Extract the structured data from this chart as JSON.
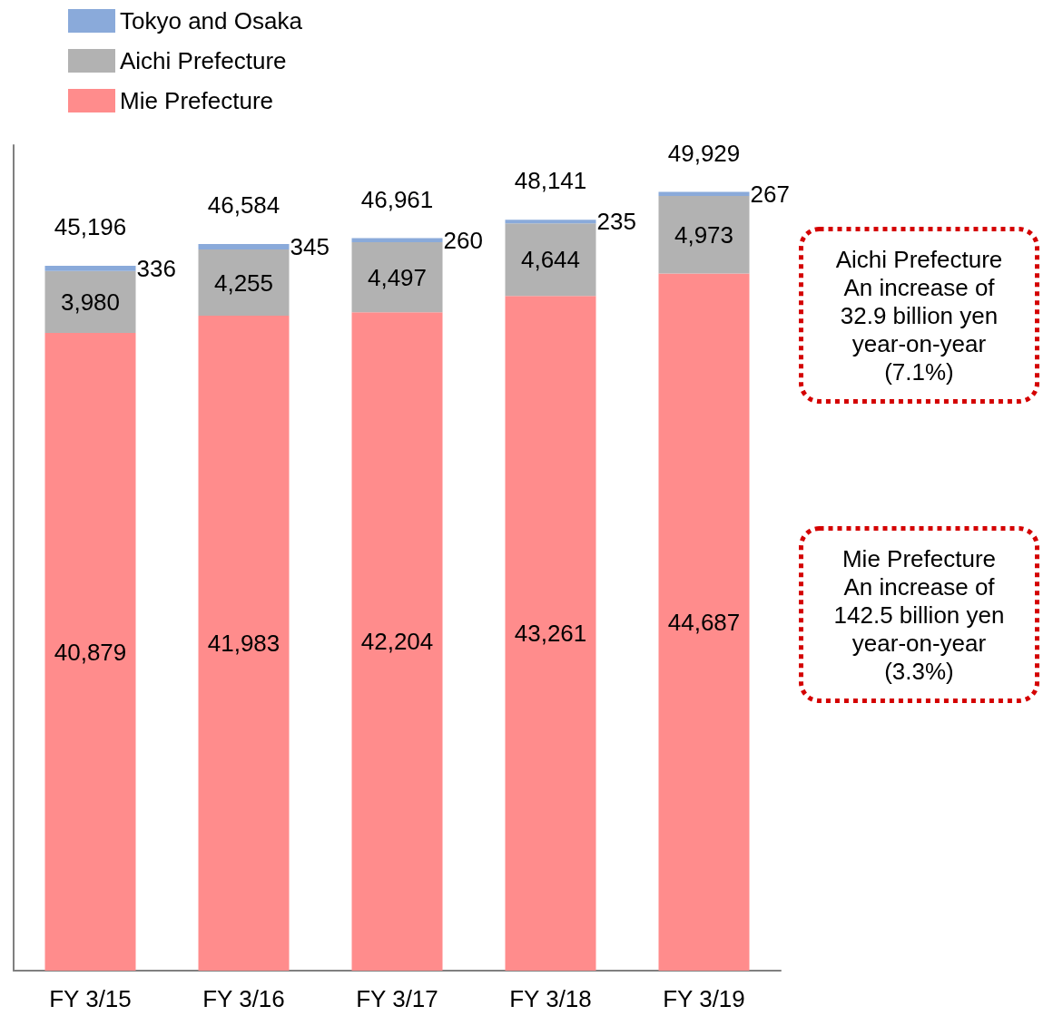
{
  "chart_data": {
    "type": "bar",
    "stacked": true,
    "categories": [
      "FY 3/15",
      "FY 3/16",
      "FY 3/17",
      "FY 3/18",
      "FY 3/19"
    ],
    "series": [
      {
        "name": "Mie Prefecture",
        "color": "#ff8c8c",
        "values": [
          40879,
          41983,
          42204,
          43261,
          44687
        ],
        "value_labels": [
          "40,879",
          "41,983",
          "42,204",
          "43,261",
          "44,687"
        ]
      },
      {
        "name": "Aichi Prefecture",
        "color": "#b2b2b2",
        "values": [
          3980,
          4255,
          4497,
          4644,
          4973
        ],
        "value_labels": [
          "3,980",
          "4,255",
          "4,497",
          "4,644",
          "4,973"
        ]
      },
      {
        "name": "Tokyo and Osaka",
        "color": "#8aaada",
        "values": [
          336,
          345,
          260,
          235,
          267
        ],
        "value_labels": [
          "336",
          "345",
          "260",
          "235",
          "267"
        ]
      }
    ],
    "totals": [
      "45,196",
      "46,584",
      "46,961",
      "48,141",
      "49,929"
    ],
    "annotations": [
      "Aichi Prefecture\nAn increase of\n32.9 billion yen\nyear-on-year\n(7.1%)",
      "Mie Prefecture\nAn increase of\n142.5 billion yen\nyear-on-year\n(3.3%)"
    ],
    "legend": "top left",
    "grid": false,
    "tick_labels": "x"
  }
}
